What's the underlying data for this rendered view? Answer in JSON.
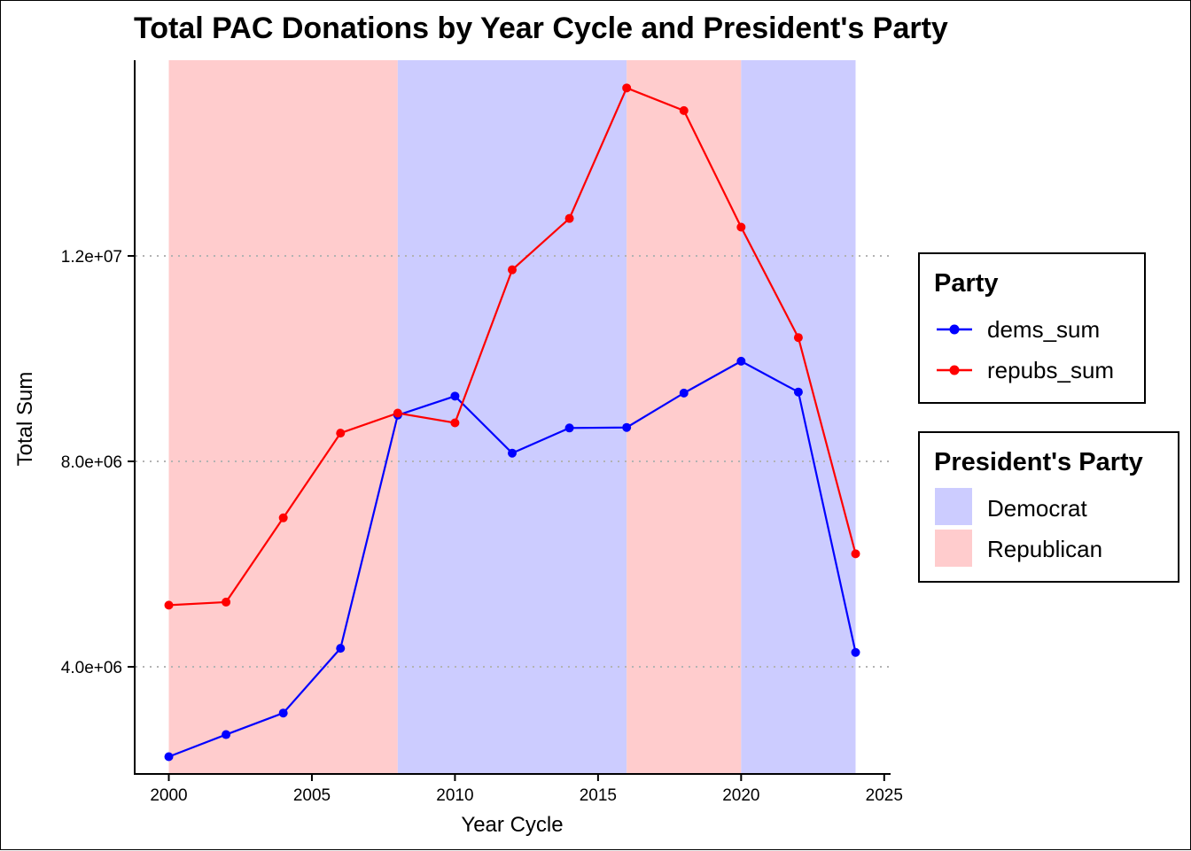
{
  "chart_data": {
    "type": "line",
    "title": "Total PAC Donations by Year Cycle and President's Party",
    "xlabel": "Year Cycle",
    "ylabel": "Total Sum",
    "xlim": [
      1999,
      2025.2
    ],
    "ylim": [
      1990000,
      15900000
    ],
    "x_ticks": [
      2000,
      2005,
      2010,
      2015,
      2020,
      2025
    ],
    "x_tick_labels": [
      "2000",
      "2005",
      "2010",
      "2015",
      "2020",
      "2025"
    ],
    "y_ticks": [
      4000000,
      8000000,
      12000000
    ],
    "y_tick_labels": [
      "4.0e+06",
      "8.0e+06",
      "1.2e+07"
    ],
    "grid": "horizontal-dotted",
    "legend_placement": "right",
    "x": [
      2000,
      2002,
      2004,
      2006,
      2008,
      2010,
      2012,
      2014,
      2016,
      2018,
      2020,
      2022,
      2024
    ],
    "series": [
      {
        "name": "dems_sum",
        "color": "#0000ff",
        "values": [
          2250000,
          2680000,
          3100000,
          4360000,
          8900000,
          9270000,
          8160000,
          8650000,
          8660000,
          9330000,
          9950000,
          9350000,
          4280000
        ]
      },
      {
        "name": "repubs_sum",
        "color": "#ff0000",
        "values": [
          5200000,
          5260000,
          6900000,
          8550000,
          8940000,
          8750000,
          11730000,
          12730000,
          15270000,
          14830000,
          12560000,
          10410000,
          6200000
        ]
      }
    ],
    "background_bands": [
      {
        "party": "Republican",
        "start": 2000,
        "end": 2008
      },
      {
        "party": "Democrat",
        "start": 2008,
        "end": 2016
      },
      {
        "party": "Republican",
        "start": 2016,
        "end": 2020
      },
      {
        "party": "Democrat",
        "start": 2020,
        "end": 2024
      }
    ],
    "legends": [
      {
        "title": "Party",
        "entries": [
          {
            "label": "dems_sum",
            "color": "#0000ff",
            "kind": "line-point"
          },
          {
            "label": "repubs_sum",
            "color": "#ff0000",
            "kind": "line-point"
          }
        ]
      },
      {
        "title": "President's Party",
        "entries": [
          {
            "label": "Democrat",
            "color": "#ccccff",
            "kind": "fill"
          },
          {
            "label": "Republican",
            "color": "#ffcccd",
            "kind": "fill"
          }
        ]
      }
    ],
    "colors": {
      "democrat_band": "#ccccff",
      "republican_band": "#ffcccd",
      "grid": "#b3b3b3",
      "axis": "#000000"
    }
  }
}
